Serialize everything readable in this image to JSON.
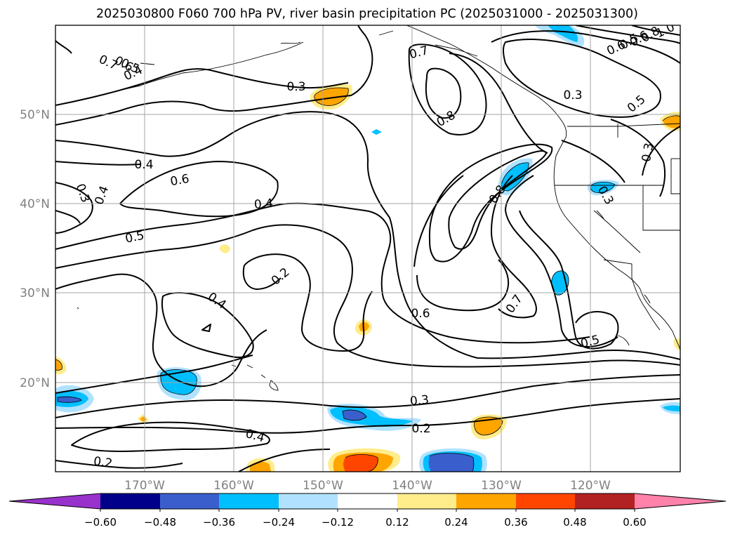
{
  "title": "2025030800 F060 700 hPa PV, river basin precipitation PC (2025031000 - 2025031300)",
  "map": {
    "grid": true,
    "lon_ticks": [
      "170°W",
      "160°W",
      "150°W",
      "140°W",
      "130°W",
      "120°W"
    ],
    "lat_ticks": [
      "50°N",
      "40°N",
      "30°N",
      "20°N"
    ],
    "contour_labels": [
      "0.7",
      "0.6",
      "0.5",
      "0.4",
      "0.3",
      "0.7",
      "0.8",
      "0.3",
      "0.5",
      "0.6",
      "0.3",
      "0.4",
      "0.6",
      "0.4",
      "0.3",
      "0.4",
      "0.5",
      "0.8",
      "0.3",
      "0.2",
      "0.4",
      "0.7",
      "0.6",
      "0.5",
      "0.3",
      "0.2",
      "0.4",
      "0.2",
      "0.5",
      "0.6",
      "0.8",
      "1.0"
    ]
  },
  "colorbar": {
    "ticks": [
      "−0.60",
      "−0.48",
      "−0.36",
      "−0.24",
      "−0.12",
      "0.12",
      "0.24",
      "0.36",
      "0.48",
      "0.60"
    ],
    "colors": [
      "#9932CC",
      "#00008B",
      "#3A5FCD",
      "#00BFFF",
      "#B0E2FF",
      "#FFFFFF",
      "#FFEC8B",
      "#FFA500",
      "#FF4500",
      "#B22222",
      "#FF82AB"
    ],
    "extend": "both"
  }
}
